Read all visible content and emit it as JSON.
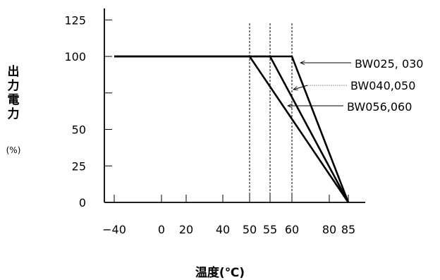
{
  "chart_data": {
    "type": "line",
    "xlabel": "温度(℃)",
    "ylabel": "出力電力",
    "yunit": "(%)",
    "x_ticks": [
      -40,
      0,
      20,
      40,
      50,
      55,
      60,
      80,
      85
    ],
    "x_tick_labels": [
      "−40",
      "0",
      "20",
      "40",
      "50",
      "55",
      "60",
      "80",
      "85"
    ],
    "y_ticks": [
      0,
      25,
      50,
      75,
      100,
      125
    ],
    "y_tick_labels": [
      "0",
      "25",
      "50",
      "",
      "100",
      "125"
    ],
    "xlim": [
      -40,
      85
    ],
    "ylim": [
      0,
      125
    ],
    "grid": false,
    "reference_lines_x": [
      50,
      55,
      60
    ],
    "series": [
      {
        "name": "BW025, 030",
        "x": [
          -40,
          60,
          85
        ],
        "y": [
          100,
          100,
          0
        ]
      },
      {
        "name": "BW040,050",
        "x": [
          -40,
          55,
          85
        ],
        "y": [
          100,
          100,
          0
        ]
      },
      {
        "name": "BW056,060",
        "x": [
          -40,
          50,
          85
        ],
        "y": [
          100,
          100,
          0
        ]
      }
    ],
    "legend_placement": "right (arrow annotations)"
  }
}
